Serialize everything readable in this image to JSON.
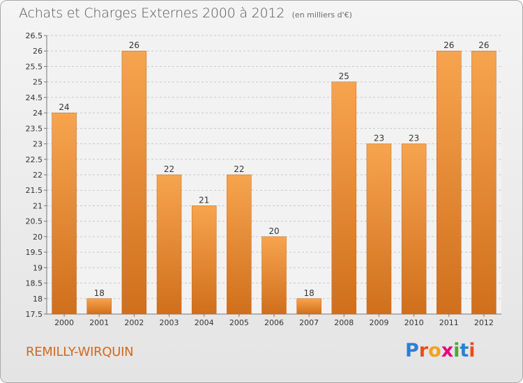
{
  "header": {
    "title": "Achats et Charges Externes 2000 à 2012",
    "subtitle": "(en milliers d'€)"
  },
  "footer": {
    "commune": "REMILLY-WIRQUIN",
    "logo_letters": [
      "P",
      "r",
      "o",
      "x",
      "i",
      "t",
      "i"
    ],
    "logo_colors": [
      "#2e7fd1",
      "#e94e1b",
      "#f4a11d",
      "#e6007e",
      "#4aa832",
      "#2e7fd1",
      "#e94e1b"
    ]
  },
  "colors": {
    "bar_light": "#f7a44f",
    "bar_dark": "#d06f1c",
    "grid": "#c8c8c8",
    "axis": "#777777",
    "text": "#333333"
  },
  "chart_data": {
    "type": "bar",
    "title": "Achats et Charges Externes 2000 à 2012",
    "subtitle": "(en milliers d'€)",
    "categories": [
      "2000",
      "2001",
      "2002",
      "2003",
      "2004",
      "2005",
      "2006",
      "2007",
      "2008",
      "2009",
      "2010",
      "2011",
      "2012"
    ],
    "values": [
      24,
      18,
      26,
      22,
      21,
      22,
      20,
      18,
      25,
      23,
      23,
      26,
      26
    ],
    "ylim": [
      17.5,
      26.5
    ],
    "yticks": [
      17.5,
      18,
      18.5,
      19,
      19.5,
      20,
      20.5,
      21,
      21.5,
      22,
      22.5,
      23,
      23.5,
      24,
      24.5,
      25,
      25.5,
      26,
      26.5
    ],
    "grid": true,
    "xlabel": "",
    "ylabel": ""
  }
}
